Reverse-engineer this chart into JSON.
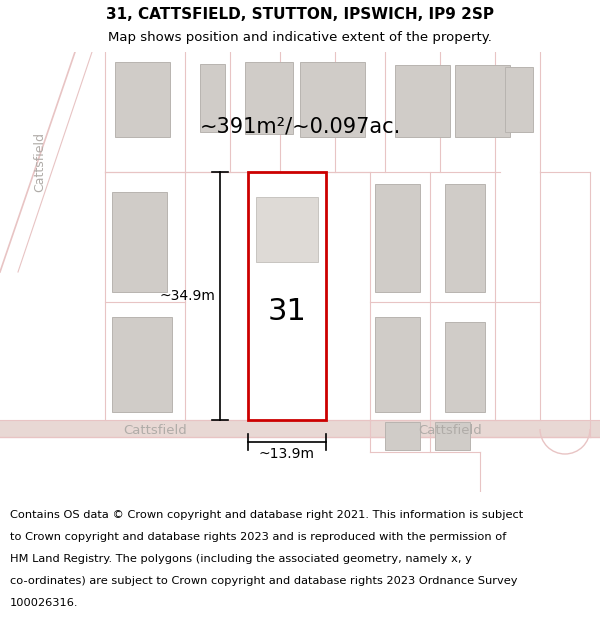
{
  "title_line1": "31, CATTSFIELD, STUTTON, IPSWICH, IP9 2SP",
  "title_line2": "Map shows position and indicative extent of the property.",
  "area_text": "~391m²/~0.097ac.",
  "property_number": "31",
  "dim_vertical": "~34.9m",
  "dim_horizontal": "~13.9m",
  "road_label_left": "Cattsfield",
  "road_label_right": "Cattsfield",
  "road_label_vertical": "Cattsfield",
  "footer_text": "Contains OS data © Crown copyright and database right 2021. This information is subject to Crown copyright and database rights 2023 and is reproduced with the permission of HM Land Registry. The polygons (including the associated geometry, namely x, y co-ordinates) are subject to Crown copyright and database rights 2023 Ordnance Survey 100026316.",
  "map_bg": "#eeebe8",
  "property_fill": "#ffffff",
  "property_edge": "#cc0000",
  "road_color": "#e8c4c4",
  "building_fill": "#d0ccc8",
  "building_edge": "#b8b4b0",
  "text_color": "#000000",
  "road_text_color": "#b0aca8",
  "footer_bg": "#ffffff",
  "title_bg": "#ffffff"
}
